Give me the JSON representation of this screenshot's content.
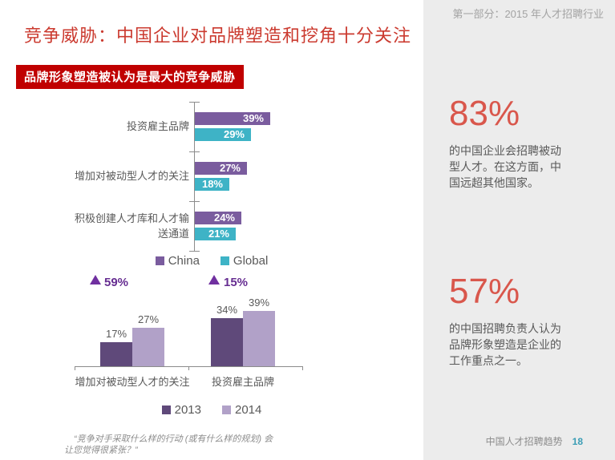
{
  "slide": {
    "header": "第一部分：2015 年人才招聘行业",
    "title": "竞争威胁：中国企业对品牌塑造和挖角十分关注",
    "banner": "品牌形象塑造被认为是最大的竞争威胁",
    "quote_line1": "“竞争对手采取什么样的行动 (或有什么样的规划) 会",
    "quote_line2": "让您觉得很紧张？”",
    "footer_title": "中国人才招聘趋势",
    "page_number": "18"
  },
  "stats": [
    {
      "value": "83%",
      "desc": "的中国企业会招聘被动型人才。在这方面，中国远超其他国家。"
    },
    {
      "value": "57%",
      "desc": "的中国招聘负责人认为品牌形象塑造是企业的工作重点之一。"
    }
  ],
  "chart_data": [
    {
      "type": "bar",
      "orientation": "horizontal",
      "title": "品牌形象塑造被认为是最大的竞争威胁",
      "categories": [
        "投资雇主品牌",
        "增加对被动型人才的关注",
        "积极创建人才库和人才输送通道"
      ],
      "series": [
        {
          "name": "China",
          "color": "#7A5C9E",
          "values": [
            39,
            27,
            24
          ]
        },
        {
          "name": "Global",
          "color": "#3EB3C6",
          "values": [
            29,
            18,
            21
          ]
        }
      ],
      "value_format": "percent",
      "value_labels": "inside-end",
      "legend_position": "bottom",
      "xlim": [
        0,
        100
      ]
    },
    {
      "type": "bar",
      "orientation": "vertical",
      "categories": [
        "增加对被动型人才的关注",
        "投资雇主品牌"
      ],
      "series": [
        {
          "name": "2013",
          "color": "#5F497A",
          "values": [
            17,
            34
          ]
        },
        {
          "name": "2014",
          "color": "#B1A1C8",
          "values": [
            27,
            39
          ]
        }
      ],
      "growth_markers": [
        {
          "category": "增加对被动型人才的关注",
          "label": "59%"
        },
        {
          "category": "投资雇主品牌",
          "label": "15%"
        }
      ],
      "value_format": "percent",
      "value_labels": "outside-end",
      "legend_position": "bottom",
      "ylim": [
        0,
        45
      ]
    }
  ],
  "colors": {
    "title_red": "#CB3A2F",
    "banner_red": "#C00000",
    "stat_red": "#D9574C",
    "growth_purple": "#7030A0",
    "sidebar_bg": "#ECECEC",
    "body_gray": "#595959",
    "page_number_teal": "#3A9DB5"
  }
}
